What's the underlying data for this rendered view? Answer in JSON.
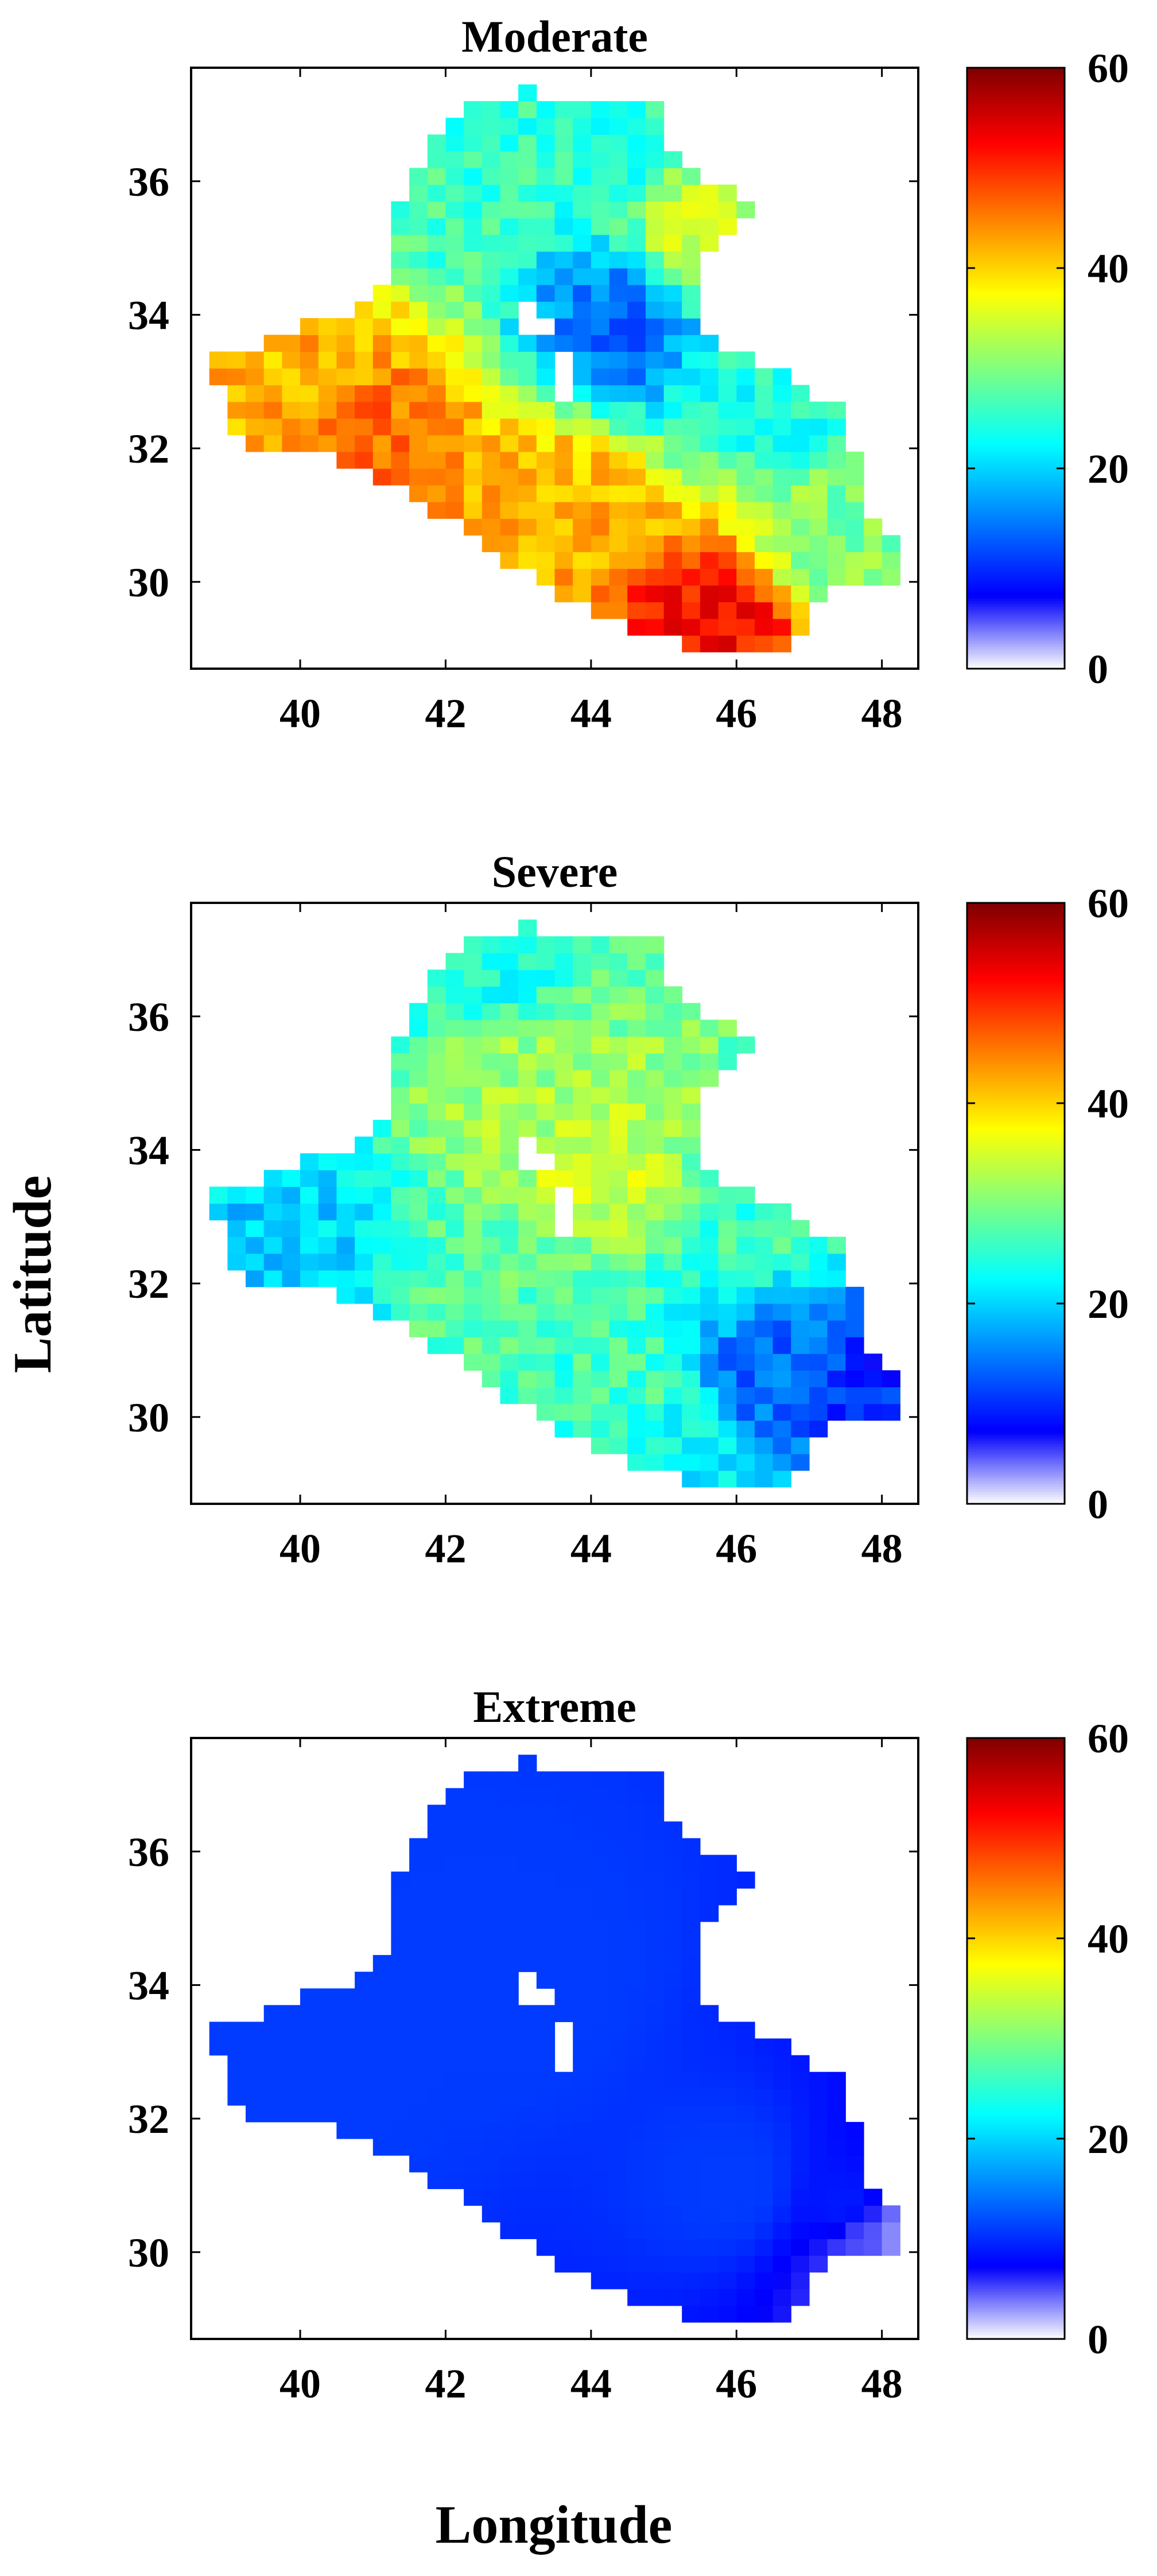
{
  "figure": {
    "ylabel": "Latitude",
    "xlabel": "Longitude"
  },
  "chart_data": [
    {
      "type": "heatmap",
      "title": "Moderate",
      "xlim": [
        38.5,
        48.5
      ],
      "ylim": [
        28.7,
        37.7
      ],
      "xticks": [
        40,
        42,
        44,
        46,
        48
      ],
      "yticks": [
        30,
        32,
        34,
        36
      ],
      "grid": false,
      "colorbar": {
        "range": [
          0,
          60
        ],
        "ticks": [
          0,
          20,
          40,
          60
        ],
        "colormap": "jet"
      },
      "description_of_pattern": "values increase from north (~22-30) to south-west/south (~40-52)",
      "field": {
        "model": "gradient",
        "points": [
          [
            44,
            36.5,
            25
          ],
          [
            42,
            36,
            26
          ],
          [
            45.5,
            35,
            34
          ],
          [
            44.5,
            34,
            14
          ],
          [
            40,
            33.2,
            42
          ],
          [
            41,
            32,
            46
          ],
          [
            43.5,
            31,
            42
          ],
          [
            45.7,
            29.3,
            52
          ],
          [
            47.5,
            30.5,
            30
          ],
          [
            46.5,
            33,
            24
          ]
        ]
      }
    },
    {
      "type": "heatmap",
      "title": "Severe",
      "xlim": [
        38.5,
        48.5
      ],
      "ylim": [
        28.7,
        37.7
      ],
      "xticks": [
        40,
        42,
        44,
        46,
        48
      ],
      "yticks": [
        30,
        32,
        34,
        36
      ],
      "grid": false,
      "colorbar": {
        "range": [
          0,
          60
        ],
        "ticks": [
          0,
          20,
          40,
          60
        ],
        "colormap": "jet"
      },
      "field": {
        "model": "gradient",
        "points": [
          [
            42.5,
            36.7,
            24
          ],
          [
            43,
            35,
            32
          ],
          [
            44,
            33.8,
            34
          ],
          [
            39.8,
            32.8,
            20
          ],
          [
            43,
            32,
            28
          ],
          [
            44.5,
            30.5,
            26
          ],
          [
            46.5,
            30.5,
            14
          ],
          [
            47.8,
            30.2,
            10
          ],
          [
            45.5,
            29.4,
            22
          ],
          [
            46.5,
            33.2,
            26
          ]
        ]
      }
    },
    {
      "type": "heatmap",
      "title": "Extreme",
      "xlim": [
        38.5,
        48.5
      ],
      "ylim": [
        28.7,
        37.7
      ],
      "xticks": [
        40,
        42,
        44,
        46,
        48
      ],
      "yticks": [
        30,
        32,
        34,
        36
      ],
      "grid": false,
      "colorbar": {
        "range": [
          0,
          60
        ],
        "ticks": [
          0,
          20,
          40,
          60
        ],
        "colormap": "jet"
      },
      "field": {
        "model": "gradient",
        "points": [
          [
            43,
            34,
            11
          ],
          [
            40,
            33,
            11
          ],
          [
            46,
            31,
            11
          ],
          [
            47.5,
            30.7,
            9
          ],
          [
            47.8,
            30.2,
            5
          ],
          [
            48.2,
            30.2,
            3
          ]
        ]
      }
    }
  ],
  "colors": {
    "missing": "#ffffff",
    "axes": "#000000"
  }
}
